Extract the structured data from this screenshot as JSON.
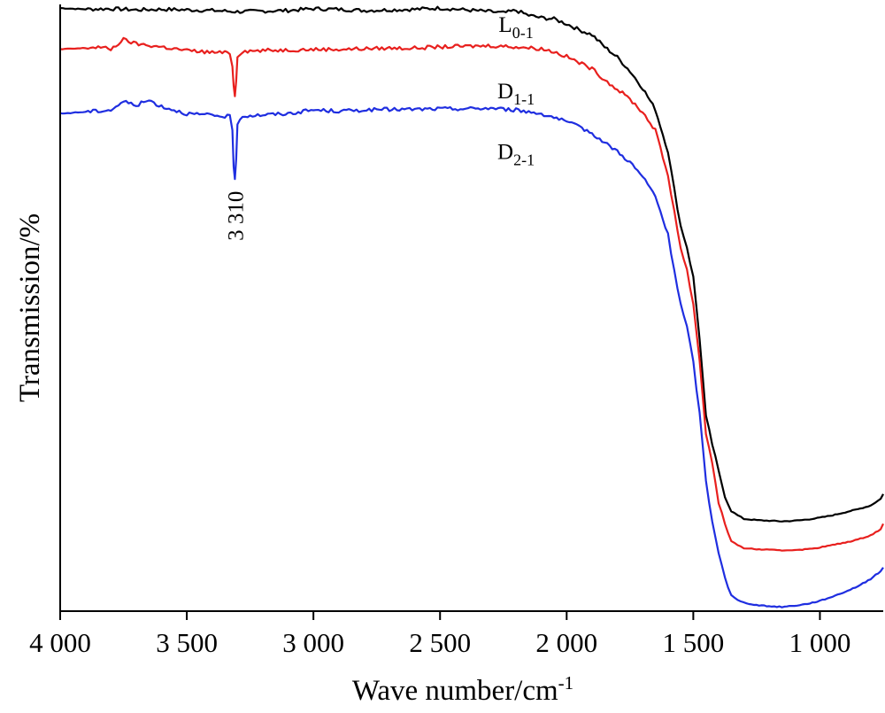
{
  "chart_data": {
    "type": "line",
    "xlabel": "Wave number/cm",
    "xlabel_sup": "-1",
    "ylabel": "Transmission/%",
    "xlim": [
      4000,
      750
    ],
    "ylim": [
      0,
      100
    ],
    "x_reversed": true,
    "x_ticks": [
      4000,
      3500,
      3000,
      2500,
      2000,
      1500,
      1000
    ],
    "x_tick_labels": [
      "4 000",
      "3 500",
      "3 000",
      "2 500",
      "2 000",
      "1 500",
      "1 000"
    ],
    "grid": false,
    "legend": "none",
    "annotations": [
      {
        "text": "3 310",
        "x": 3310,
        "y": 71
      }
    ],
    "series": [
      {
        "name": "L",
        "sub": "0-1",
        "color": "#000000",
        "label_x": 2200,
        "label_y": 95.5,
        "points": [
          [
            4000,
            99.4
          ],
          [
            3900,
            99.2
          ],
          [
            3800,
            99.3
          ],
          [
            3700,
            99.1
          ],
          [
            3600,
            99.2
          ],
          [
            3500,
            99.1
          ],
          [
            3400,
            99.0
          ],
          [
            3300,
            98.8
          ],
          [
            3200,
            98.9
          ],
          [
            3100,
            99.0
          ],
          [
            3000,
            99.3
          ],
          [
            2900,
            99.2
          ],
          [
            2800,
            99.0
          ],
          [
            2700,
            99.1
          ],
          [
            2600,
            99.2
          ],
          [
            2500,
            99.4
          ],
          [
            2400,
            99.1
          ],
          [
            2300,
            98.8
          ],
          [
            2250,
            98.6
          ],
          [
            2200,
            99.0
          ],
          [
            2150,
            98.2
          ],
          [
            2100,
            97.8
          ],
          [
            2050,
            97.6
          ],
          [
            2000,
            96.8
          ],
          [
            1950,
            95.8
          ],
          [
            1900,
            95.0
          ],
          [
            1850,
            93.0
          ],
          [
            1800,
            91.3
          ],
          [
            1750,
            89.0
          ],
          [
            1700,
            86.2
          ],
          [
            1650,
            82.7
          ],
          [
            1600,
            75.8
          ],
          [
            1575,
            69.5
          ],
          [
            1550,
            63.5
          ],
          [
            1525,
            60.0
          ],
          [
            1500,
            55.0
          ],
          [
            1475,
            45.0
          ],
          [
            1450,
            32.0
          ],
          [
            1425,
            27.5
          ],
          [
            1400,
            23.0
          ],
          [
            1375,
            19.0
          ],
          [
            1350,
            16.5
          ],
          [
            1325,
            15.8
          ],
          [
            1300,
            15.2
          ],
          [
            1250,
            15.0
          ],
          [
            1200,
            14.9
          ],
          [
            1150,
            14.8
          ],
          [
            1100,
            14.9
          ],
          [
            1050,
            15.1
          ],
          [
            1000,
            15.4
          ],
          [
            950,
            15.8
          ],
          [
            900,
            16.3
          ],
          [
            850,
            16.8
          ],
          [
            800,
            17.4
          ],
          [
            760,
            18.5
          ],
          [
            750,
            19.3
          ]
        ]
      },
      {
        "name": "D",
        "sub": "1-1",
        "color": "#e8201e",
        "label_x": 2200,
        "label_y": 84.5,
        "points": [
          [
            4000,
            92.6
          ],
          [
            3900,
            92.8
          ],
          [
            3850,
            93.0
          ],
          [
            3800,
            92.6
          ],
          [
            3750,
            94.2
          ],
          [
            3700,
            93.5
          ],
          [
            3600,
            93.0
          ],
          [
            3500,
            92.4
          ],
          [
            3400,
            92.1
          ],
          [
            3330,
            92.0
          ],
          [
            3320,
            90.0
          ],
          [
            3315,
            86.5
          ],
          [
            3310,
            85.0
          ],
          [
            3305,
            87.5
          ],
          [
            3300,
            91.5
          ],
          [
            3280,
            92.3
          ],
          [
            3200,
            92.4
          ],
          [
            3100,
            92.5
          ],
          [
            3000,
            92.6
          ],
          [
            2900,
            92.6
          ],
          [
            2800,
            92.7
          ],
          [
            2700,
            92.8
          ],
          [
            2600,
            92.8
          ],
          [
            2500,
            93.0
          ],
          [
            2400,
            93.1
          ],
          [
            2300,
            93.2
          ],
          [
            2200,
            93.0
          ],
          [
            2100,
            92.7
          ],
          [
            2050,
            92.2
          ],
          [
            2000,
            91.4
          ],
          [
            1950,
            90.4
          ],
          [
            1900,
            89.4
          ],
          [
            1850,
            87.6
          ],
          [
            1800,
            86.0
          ],
          [
            1750,
            84.4
          ],
          [
            1700,
            82.2
          ],
          [
            1650,
            79.3
          ],
          [
            1600,
            71.8
          ],
          [
            1575,
            66.0
          ],
          [
            1550,
            59.8
          ],
          [
            1525,
            56.2
          ],
          [
            1500,
            50.6
          ],
          [
            1475,
            41.4
          ],
          [
            1450,
            29.2
          ],
          [
            1425,
            24.5
          ],
          [
            1400,
            18.0
          ],
          [
            1375,
            14.2
          ],
          [
            1350,
            11.6
          ],
          [
            1325,
            10.8
          ],
          [
            1300,
            10.4
          ],
          [
            1250,
            10.2
          ],
          [
            1200,
            10.1
          ],
          [
            1150,
            10.0
          ],
          [
            1100,
            10.1
          ],
          [
            1050,
            10.2
          ],
          [
            1000,
            10.5
          ],
          [
            950,
            10.9
          ],
          [
            900,
            11.3
          ],
          [
            850,
            11.8
          ],
          [
            800,
            12.5
          ],
          [
            760,
            13.5
          ],
          [
            750,
            14.4
          ]
        ]
      },
      {
        "name": "D",
        "sub": "2-1",
        "color": "#1f2ee0",
        "label_x": 2200,
        "label_y": 74.5,
        "points": [
          [
            4000,
            82.0
          ],
          [
            3900,
            82.3
          ],
          [
            3800,
            82.6
          ],
          [
            3750,
            84.0
          ],
          [
            3700,
            83.4
          ],
          [
            3650,
            84.2
          ],
          [
            3600,
            83.2
          ],
          [
            3500,
            82.0
          ],
          [
            3400,
            81.7
          ],
          [
            3330,
            81.5
          ],
          [
            3320,
            79.0
          ],
          [
            3315,
            73.5
          ],
          [
            3310,
            71.0
          ],
          [
            3305,
            74.5
          ],
          [
            3300,
            80.5
          ],
          [
            3280,
            81.6
          ],
          [
            3200,
            81.8
          ],
          [
            3100,
            82.0
          ],
          [
            3000,
            82.6
          ],
          [
            2900,
            82.4
          ],
          [
            2800,
            82.6
          ],
          [
            2700,
            82.7
          ],
          [
            2600,
            82.7
          ],
          [
            2500,
            82.8
          ],
          [
            2400,
            82.8
          ],
          [
            2300,
            82.9
          ],
          [
            2200,
            82.6
          ],
          [
            2100,
            82.0
          ],
          [
            2050,
            81.4
          ],
          [
            2000,
            80.6
          ],
          [
            1950,
            79.8
          ],
          [
            1900,
            78.8
          ],
          [
            1850,
            77.2
          ],
          [
            1800,
            75.8
          ],
          [
            1750,
            74.0
          ],
          [
            1700,
            71.6
          ],
          [
            1650,
            68.4
          ],
          [
            1600,
            62.0
          ],
          [
            1575,
            56.2
          ],
          [
            1550,
            50.5
          ],
          [
            1525,
            46.8
          ],
          [
            1500,
            41.0
          ],
          [
            1475,
            32.5
          ],
          [
            1450,
            21.5
          ],
          [
            1425,
            14.6
          ],
          [
            1400,
            9.8
          ],
          [
            1375,
            5.6
          ],
          [
            1350,
            2.6
          ],
          [
            1325,
            1.8
          ],
          [
            1300,
            1.4
          ],
          [
            1250,
            1.0
          ],
          [
            1200,
            0.8
          ],
          [
            1150,
            0.7
          ],
          [
            1100,
            0.9
          ],
          [
            1050,
            1.2
          ],
          [
            1000,
            1.7
          ],
          [
            950,
            2.4
          ],
          [
            900,
            3.2
          ],
          [
            850,
            4.1
          ],
          [
            800,
            5.3
          ],
          [
            760,
            6.6
          ],
          [
            750,
            7.2
          ]
        ]
      }
    ]
  }
}
